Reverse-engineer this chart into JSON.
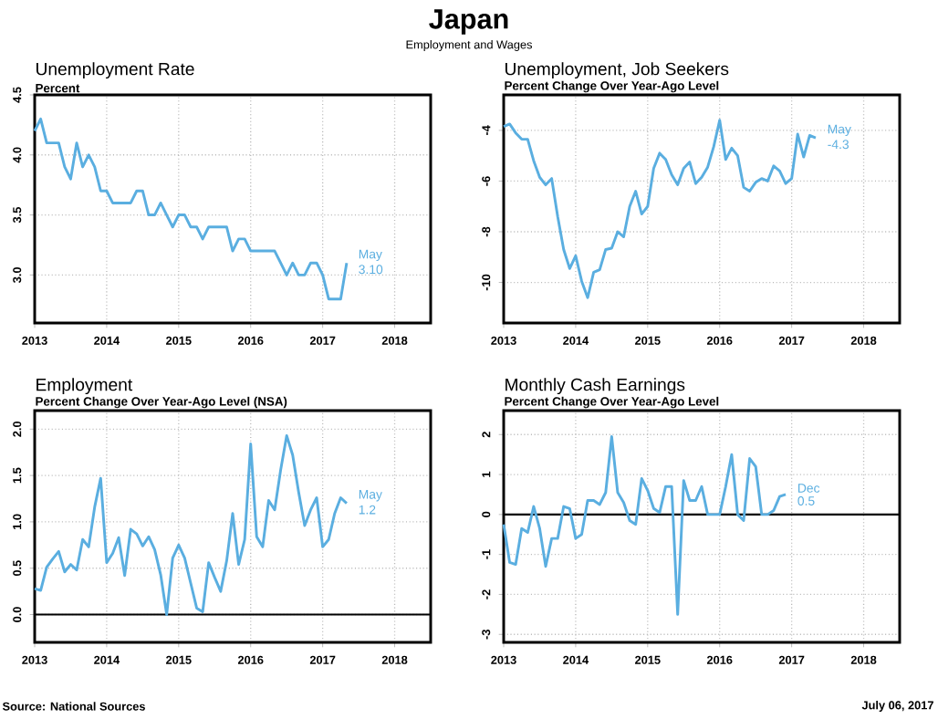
{
  "chart_data": [
    {
      "type": "line",
      "title": "Unemployment Rate",
      "subtitle": "Percent",
      "x": [
        "2013-01",
        "2013-02",
        "2013-03",
        "2013-04",
        "2013-05",
        "2013-06",
        "2013-07",
        "2013-08",
        "2013-09",
        "2013-10",
        "2013-11",
        "2013-12",
        "2014-01",
        "2014-02",
        "2014-03",
        "2014-04",
        "2014-05",
        "2014-06",
        "2014-07",
        "2014-08",
        "2014-09",
        "2014-10",
        "2014-11",
        "2014-12",
        "2015-01",
        "2015-02",
        "2015-03",
        "2015-04",
        "2015-05",
        "2015-06",
        "2015-07",
        "2015-08",
        "2015-09",
        "2015-10",
        "2015-11",
        "2015-12",
        "2016-01",
        "2016-02",
        "2016-03",
        "2016-04",
        "2016-05",
        "2016-06",
        "2016-07",
        "2016-08",
        "2016-09",
        "2016-10",
        "2016-11",
        "2016-12",
        "2017-01",
        "2017-02",
        "2017-03",
        "2017-04",
        "2017-05"
      ],
      "series": [
        {
          "color": "#5aaee0",
          "values": [
            4.2,
            4.3,
            4.1,
            4.1,
            4.1,
            3.9,
            3.8,
            4.1,
            3.9,
            4.0,
            3.9,
            3.7,
            3.7,
            3.6,
            3.6,
            3.6,
            3.6,
            3.7,
            3.7,
            3.5,
            3.5,
            3.6,
            3.5,
            3.4,
            3.5,
            3.5,
            3.4,
            3.4,
            3.3,
            3.4,
            3.4,
            3.4,
            3.4,
            3.2,
            3.3,
            3.3,
            3.2,
            3.2,
            3.2,
            3.2,
            3.2,
            3.1,
            3.0,
            3.1,
            3.0,
            3.0,
            3.1,
            3.1,
            3.0,
            2.8,
            2.8,
            2.8,
            3.1
          ]
        }
      ],
      "xlim": [
        "2013-01",
        "2018-07"
      ],
      "xticks": [
        "2013",
        "2014",
        "2015",
        "2016",
        "2017",
        "2018"
      ],
      "ylim": [
        2.6,
        4.5
      ],
      "yticks": [
        {
          "value": 3,
          "label": "3.0"
        },
        {
          "value": 3.5,
          "label": "3.5"
        },
        {
          "value": 4,
          "label": "4.0"
        },
        {
          "value": 4.5,
          "label": "4.5"
        }
      ],
      "grid": true,
      "annotations": [
        "Japan",
        "Employment and Wages",
        {
          "text": "May",
          "x": "2017-05",
          "y": 3.1
        },
        {
          "text": "3.10",
          "x": "2017-05",
          "y": 3.1
        }
      ]
    },
    {
      "type": "line",
      "title": "Unemployment, Job Seekers",
      "subtitle": "Percent Change Over Year-Ago Level",
      "x": [
        "2013-01",
        "2013-02",
        "2013-03",
        "2013-04",
        "2013-05",
        "2013-06",
        "2013-07",
        "2013-08",
        "2013-09",
        "2013-10",
        "2013-11",
        "2013-12",
        "2014-01",
        "2014-02",
        "2014-03",
        "2014-04",
        "2014-05",
        "2014-06",
        "2014-07",
        "2014-08",
        "2014-09",
        "2014-10",
        "2014-11",
        "2014-12",
        "2015-01",
        "2015-02",
        "2015-03",
        "2015-04",
        "2015-05",
        "2015-06",
        "2015-07",
        "2015-08",
        "2015-09",
        "2015-10",
        "2015-11",
        "2015-12",
        "2016-01",
        "2016-02",
        "2016-03",
        "2016-04",
        "2016-05",
        "2016-06",
        "2016-07",
        "2016-08",
        "2016-09",
        "2016-10",
        "2016-11",
        "2016-12",
        "2017-01",
        "2017-02",
        "2017-03",
        "2017-04",
        "2017-05"
      ],
      "series": [
        {
          "color": "#5aaee0",
          "values": [
            -3.85,
            -3.75,
            -4.1,
            -4.35,
            -4.35,
            -5.2,
            -5.85,
            -6.15,
            -5.9,
            -7.4,
            -8.7,
            -9.45,
            -8.95,
            -9.95,
            -10.6,
            -9.6,
            -9.5,
            -8.7,
            -8.65,
            -8.0,
            -8.2,
            -7.0,
            -6.4,
            -7.3,
            -7.0,
            -5.5,
            -4.9,
            -5.15,
            -5.75,
            -6.15,
            -5.5,
            -5.25,
            -6.1,
            -5.85,
            -5.45,
            -4.65,
            -3.6,
            -5.15,
            -4.7,
            -5.0,
            -6.25,
            -6.4,
            -6.05,
            -5.9,
            -6.0,
            -5.4,
            -5.6,
            -6.1,
            -5.9,
            -4.15,
            -5.05,
            -4.2,
            -4.3
          ]
        }
      ],
      "xlim": [
        "2013-01",
        "2018-07"
      ],
      "xticks": [
        "2013",
        "2014",
        "2015",
        "2016",
        "2017",
        "2018"
      ],
      "ylim": [
        -11.6,
        -2.6
      ],
      "yticks": [
        -10,
        -8,
        -6,
        -4
      ],
      "grid": true,
      "annotations": [
        {
          "text": "May",
          "x": "2017-05",
          "y": -4.3
        },
        {
          "text": "-4.3",
          "x": "2017-05",
          "y": -4.3
        }
      ]
    },
    {
      "type": "line",
      "title": "Employment",
      "subtitle": "Percent Change Over Year-Ago Level (NSA)",
      "x": [
        "2013-01",
        "2013-02",
        "2013-03",
        "2013-04",
        "2013-05",
        "2013-06",
        "2013-07",
        "2013-08",
        "2013-09",
        "2013-10",
        "2013-11",
        "2013-12",
        "2014-01",
        "2014-02",
        "2014-03",
        "2014-04",
        "2014-05",
        "2014-06",
        "2014-07",
        "2014-08",
        "2014-09",
        "2014-10",
        "2014-11",
        "2014-12",
        "2015-01",
        "2015-02",
        "2015-03",
        "2015-04",
        "2015-05",
        "2015-06",
        "2015-07",
        "2015-08",
        "2015-09",
        "2015-10",
        "2015-11",
        "2015-12",
        "2016-01",
        "2016-02",
        "2016-03",
        "2016-04",
        "2016-05",
        "2016-06",
        "2016-07",
        "2016-08",
        "2016-09",
        "2016-10",
        "2016-11",
        "2016-12",
        "2017-01",
        "2017-02",
        "2017-03",
        "2017-04",
        "2017-05"
      ],
      "series": [
        {
          "color": "#5aaee0",
          "values": [
            0.28,
            0.26,
            0.51,
            0.6,
            0.68,
            0.46,
            0.54,
            0.48,
            0.81,
            0.73,
            1.16,
            1.47,
            0.56,
            0.66,
            0.83,
            0.42,
            0.92,
            0.87,
            0.74,
            0.84,
            0.7,
            0.43,
            0.0,
            0.61,
            0.75,
            0.61,
            0.34,
            0.07,
            0.03,
            0.56,
            0.4,
            0.25,
            0.58,
            1.09,
            0.54,
            0.81,
            1.84,
            0.84,
            0.73,
            1.23,
            1.13,
            1.56,
            1.93,
            1.72,
            1.32,
            0.96,
            1.13,
            1.26,
            0.73,
            0.81,
            1.09,
            1.26,
            1.2
          ]
        }
      ],
      "xlim": [
        "2013-01",
        "2018-07"
      ],
      "xticks": [
        "2013",
        "2014",
        "2015",
        "2016",
        "2017",
        "2018"
      ],
      "ylim": [
        -0.3,
        2.2
      ],
      "yticks": [
        {
          "value": 0,
          "label": "0.0"
        },
        {
          "value": 0.5,
          "label": "0.5"
        },
        {
          "value": 1,
          "label": "1.0"
        },
        {
          "value": 1.5,
          "label": "1.5"
        },
        {
          "value": 2,
          "label": "2.0"
        }
      ],
      "grid": true,
      "ref_lines": [
        {
          "axis": "y",
          "value": 0,
          "color": "#000000"
        }
      ],
      "annotations": [
        "Source: National Sources",
        {
          "text": "May",
          "x": "2017-05",
          "y": 1.2
        },
        {
          "text": "1.2",
          "x": "2017-05",
          "y": 1.2
        }
      ]
    },
    {
      "type": "line",
      "title": "Monthly Cash Earnings",
      "subtitle": "Percent Change Over Year-Ago Level",
      "x": [
        "2013-01",
        "2013-02",
        "2013-03",
        "2013-04",
        "2013-05",
        "2013-06",
        "2013-07",
        "2013-08",
        "2013-09",
        "2013-10",
        "2013-11",
        "2013-12",
        "2014-01",
        "2014-02",
        "2014-03",
        "2014-04",
        "2014-05",
        "2014-06",
        "2014-07",
        "2014-08",
        "2014-09",
        "2014-10",
        "2014-11",
        "2014-12",
        "2015-01",
        "2015-02",
        "2015-03",
        "2015-04",
        "2015-05",
        "2015-06",
        "2015-07",
        "2015-08",
        "2015-09",
        "2015-10",
        "2015-11",
        "2015-12",
        "2016-01",
        "2016-02",
        "2016-03",
        "2016-04",
        "2016-05",
        "2016-06",
        "2016-07",
        "2016-08",
        "2016-09",
        "2016-10",
        "2016-11",
        "2016-12"
      ],
      "series": [
        {
          "color": "#5aaee0",
          "values": [
            -0.25,
            -1.2,
            -1.25,
            -0.35,
            -0.45,
            0.2,
            -0.35,
            -1.3,
            -0.6,
            -0.6,
            0.2,
            0.15,
            -0.6,
            -0.5,
            0.35,
            0.35,
            0.25,
            0.55,
            1.95,
            0.55,
            0.3,
            -0.15,
            -0.25,
            0.9,
            0.6,
            0.15,
            0.05,
            0.7,
            0.7,
            -2.5,
            0.85,
            0.35,
            0.35,
            0.7,
            0.0,
            0.0,
            0.0,
            0.7,
            1.5,
            0.0,
            -0.15,
            1.4,
            1.2,
            0.0,
            0.0,
            0.1,
            0.45,
            0.5
          ]
        }
      ],
      "xlim": [
        "2013-01",
        "2018-07"
      ],
      "xticks": [
        "2013",
        "2014",
        "2015",
        "2016",
        "2017",
        "2018"
      ],
      "ylim": [
        -3.2,
        2.6
      ],
      "yticks": [
        -3,
        -2,
        -1,
        0,
        1,
        2
      ],
      "grid": true,
      "ref_lines": [
        {
          "axis": "y",
          "value": 0,
          "color": "#000000"
        }
      ],
      "annotations": [
        "July 06, 2017",
        {
          "text": "Dec",
          "x": "2016-12",
          "y": 0.5
        },
        {
          "text": "0.5",
          "x": "2016-12",
          "y": 0.5
        }
      ]
    }
  ]
}
